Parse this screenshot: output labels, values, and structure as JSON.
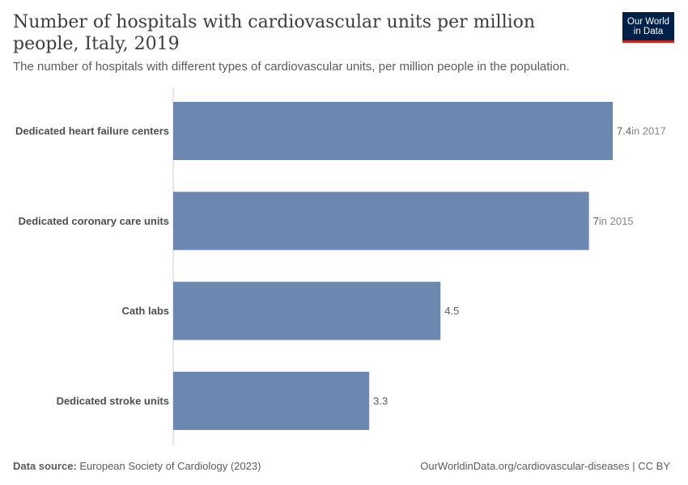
{
  "header": {
    "title": "Number of hospitals with cardiovascular units per million people, Italy, 2019",
    "subtitle": "The number of hospitals with different types of cardiovascular units, per million people in the population."
  },
  "logo": {
    "line1": "Our World",
    "line2": "in Data"
  },
  "chart_data": {
    "type": "bar",
    "orientation": "horizontal",
    "title": "Number of hospitals with cardiovascular units per million people, Italy, 2019",
    "subtitle": "The number of hospitals with different types of cardiovascular units, per million people in the population.",
    "categories": [
      "Dedicated heart failure centers",
      "Dedicated coronary care units",
      "Cath labs",
      "Dedicated stroke units"
    ],
    "values": [
      7.4,
      7,
      4.5,
      3.3
    ],
    "value_labels": [
      "7.4",
      "7",
      "4.5",
      "3.3"
    ],
    "year_notes": [
      "in 2017",
      "in 2015",
      "",
      ""
    ],
    "xlim": [
      0,
      7.4
    ],
    "xlabel": "",
    "ylabel": "",
    "grid": false,
    "bar_color": "#6d88b0"
  },
  "footer": {
    "source_label": "Data source:",
    "source_text": "European Society of Cardiology (2023)",
    "right_text": "OurWorldinData.org/cardiovascular-diseases | CC BY"
  },
  "colors": {
    "bar": "#6d88b0",
    "axis": "#cccccc",
    "logo_bg": "#002147",
    "logo_accent": "#ce261e"
  }
}
